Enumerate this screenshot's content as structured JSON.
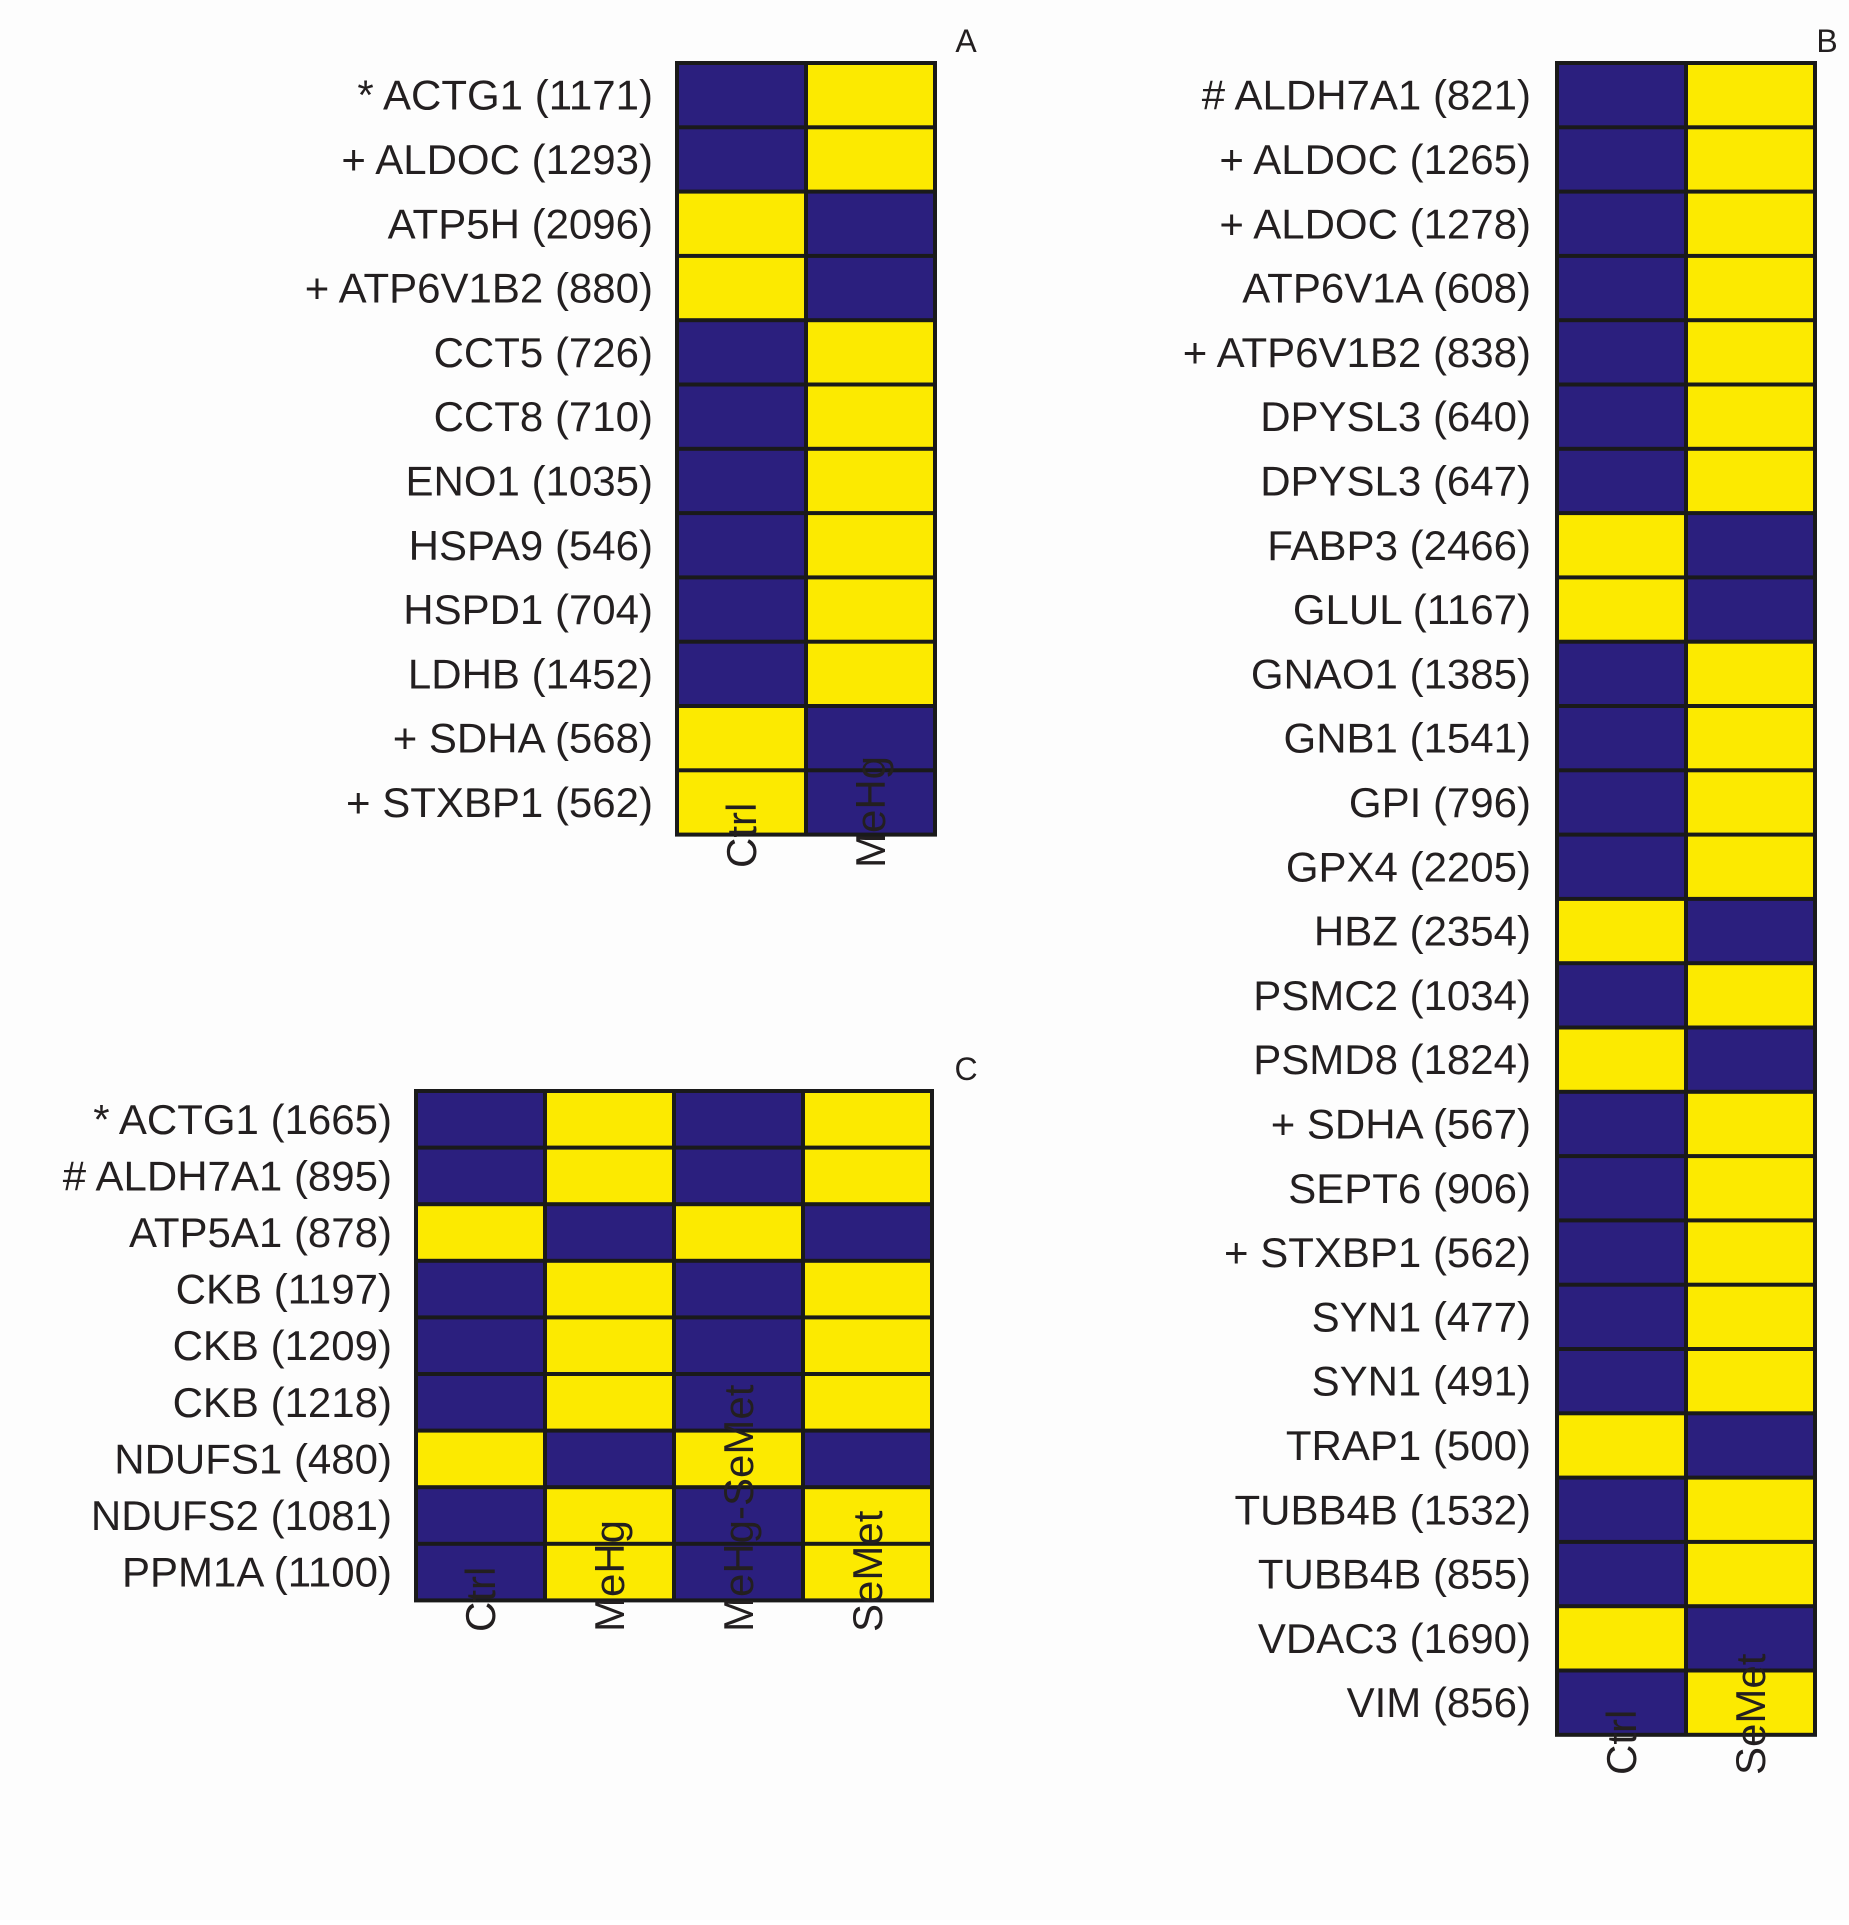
{
  "colors": {
    "low": "#2b1f7e",
    "high": "#fcea00",
    "border": "#1a1a1a",
    "text": "#231f20"
  },
  "chart_data": [
    {
      "type": "heatmap",
      "panel_label": "A",
      "columns": [
        "Ctrl",
        "MeHg"
      ],
      "rows": [
        "* ACTG1 (1171)",
        "+ ALDOC (1293)",
        "ATP5H (2096)",
        "+ ATP6V1B2 (880)",
        "CCT5 (726)",
        "CCT8 (710)",
        "ENO1 (1035)",
        "HSPA9 (546)",
        "HSPD1 (704)",
        "LDHB (1452)",
        "+ SDHA (568)",
        "+ STXBP1 (562)"
      ],
      "values": [
        [
          0,
          1
        ],
        [
          0,
          1
        ],
        [
          1,
          0
        ],
        [
          1,
          0
        ],
        [
          0,
          1
        ],
        [
          0,
          1
        ],
        [
          0,
          1
        ],
        [
          0,
          1
        ],
        [
          0,
          1
        ],
        [
          0,
          1
        ],
        [
          1,
          0
        ],
        [
          1,
          0
        ]
      ]
    },
    {
      "type": "heatmap",
      "panel_label": "B",
      "columns": [
        "Ctrl",
        "SeMet"
      ],
      "rows": [
        "# ALDH7A1 (821)",
        "+ ALDOC (1265)",
        "+ ALDOC (1278)",
        "ATP6V1A (608)",
        "+ ATP6V1B2 (838)",
        "DPYSL3 (640)",
        "DPYSL3 (647)",
        "FABP3 (2466)",
        "GLUL (1167)",
        "GNAO1 (1385)",
        "GNB1 (1541)",
        "GPI (796)",
        "GPX4 (2205)",
        "HBZ (2354)",
        "PSMC2 (1034)",
        "PSMD8 (1824)",
        "+ SDHA (567)",
        "SEPT6 (906)",
        "+ STXBP1 (562)",
        "SYN1 (477)",
        "SYN1 (491)",
        "TRAP1 (500)",
        "TUBB4B (1532)",
        "TUBB4B (855)",
        "VDAC3 (1690)",
        "VIM (856)"
      ],
      "values": [
        [
          0,
          1
        ],
        [
          0,
          1
        ],
        [
          0,
          1
        ],
        [
          0,
          1
        ],
        [
          0,
          1
        ],
        [
          0,
          1
        ],
        [
          0,
          1
        ],
        [
          1,
          0
        ],
        [
          1,
          0
        ],
        [
          0,
          1
        ],
        [
          0,
          1
        ],
        [
          0,
          1
        ],
        [
          0,
          1
        ],
        [
          1,
          0
        ],
        [
          0,
          1
        ],
        [
          1,
          0
        ],
        [
          0,
          1
        ],
        [
          0,
          1
        ],
        [
          0,
          1
        ],
        [
          0,
          1
        ],
        [
          0,
          1
        ],
        [
          1,
          0
        ],
        [
          0,
          1
        ],
        [
          0,
          1
        ],
        [
          1,
          0
        ],
        [
          0,
          1
        ]
      ]
    },
    {
      "type": "heatmap",
      "panel_label": "C",
      "columns": [
        "Ctrl",
        "MeHg",
        "MeHg-SeMet",
        "SeMet"
      ],
      "rows": [
        "* ACTG1 (1665)",
        "# ALDH7A1 (895)",
        "ATP5A1 (878)",
        "CKB (1197)",
        "CKB (1209)",
        "CKB (1218)",
        "NDUFS1 (480)",
        "NDUFS2 (1081)",
        "PPM1A (1100)"
      ],
      "values": [
        [
          0,
          1,
          0,
          1
        ],
        [
          0,
          1,
          0,
          1
        ],
        [
          1,
          0,
          1,
          0
        ],
        [
          0,
          1,
          0,
          1
        ],
        [
          0,
          1,
          0,
          1
        ],
        [
          0,
          1,
          0,
          1
        ],
        [
          1,
          0,
          1,
          0
        ],
        [
          0,
          1,
          0,
          1
        ],
        [
          0,
          1,
          0,
          1
        ]
      ]
    }
  ]
}
